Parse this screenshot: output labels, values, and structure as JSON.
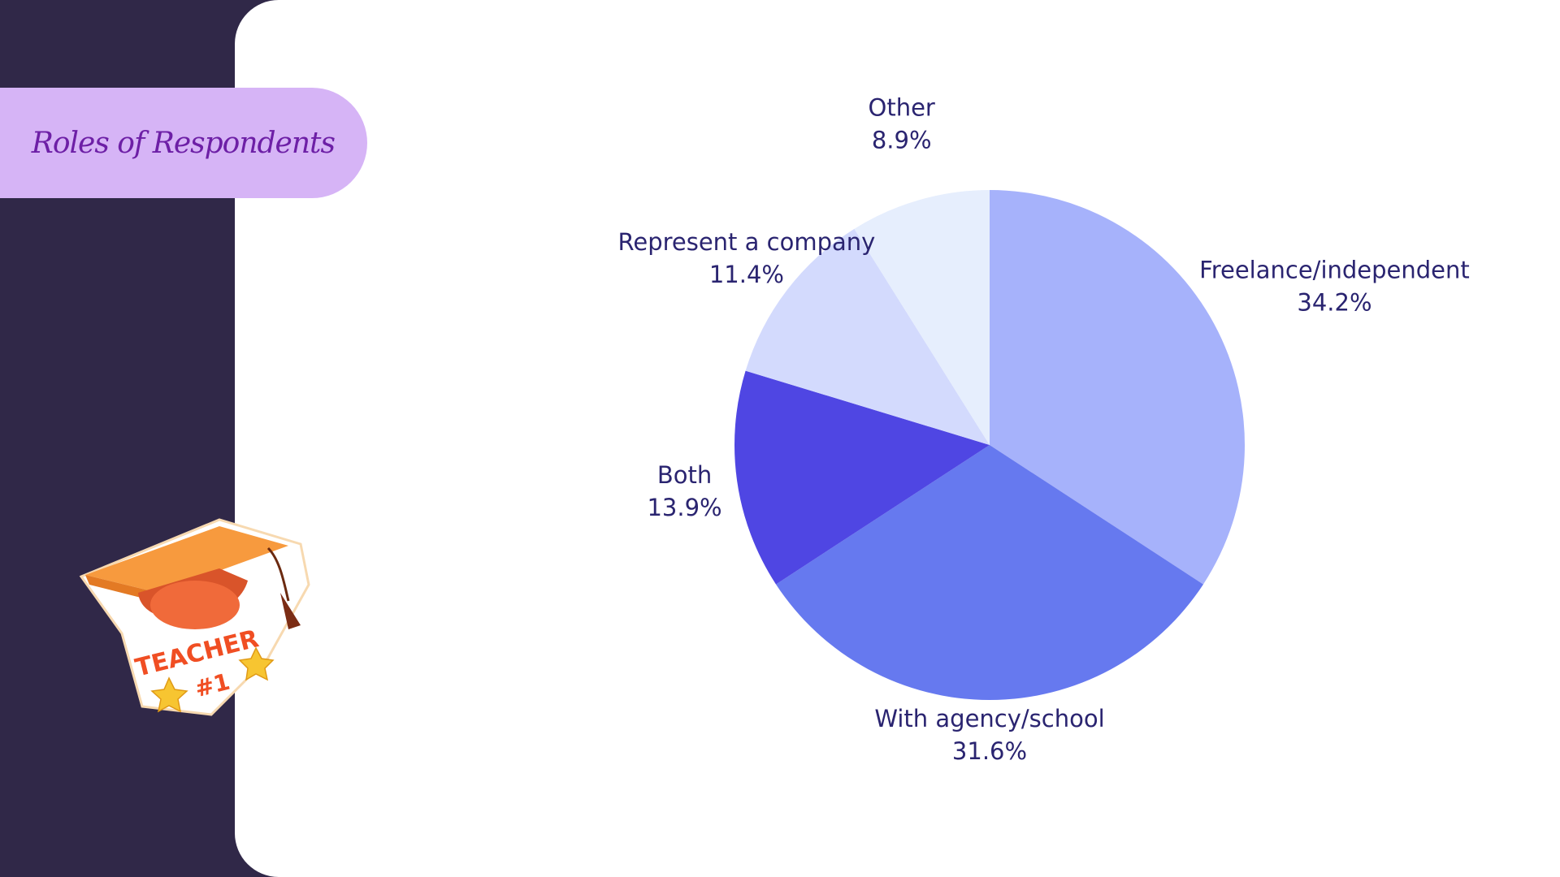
{
  "slide": {
    "title": "Roles of Respondents",
    "colors": {
      "sidebar": "#302848",
      "panel": "#ffffff",
      "title_pill": "#d6b4f6",
      "title_text": "#6d1fa6",
      "label_text": "#2a2470"
    }
  },
  "sticker": {
    "icon": "teacher-graduation-cap-sticker-icon",
    "text_main": "TEACHER",
    "text_sub": "#1"
  },
  "chart_data": {
    "type": "pie",
    "title": "",
    "categories": [
      "Freelance/independent",
      "With agency/school",
      "Both",
      "Represent a company",
      "Other"
    ],
    "values": [
      34.2,
      31.6,
      13.9,
      11.4,
      8.9
    ],
    "value_labels": [
      "34.2%",
      "31.6%",
      "13.9%",
      "11.4%",
      "8.9%"
    ],
    "colors": [
      "#a6b2fb",
      "#6679ef",
      "#4f46e3",
      "#d3dafd",
      "#e6eefd"
    ],
    "start": "12 o'clock, clockwise",
    "legend": "none",
    "labels": "outside"
  }
}
